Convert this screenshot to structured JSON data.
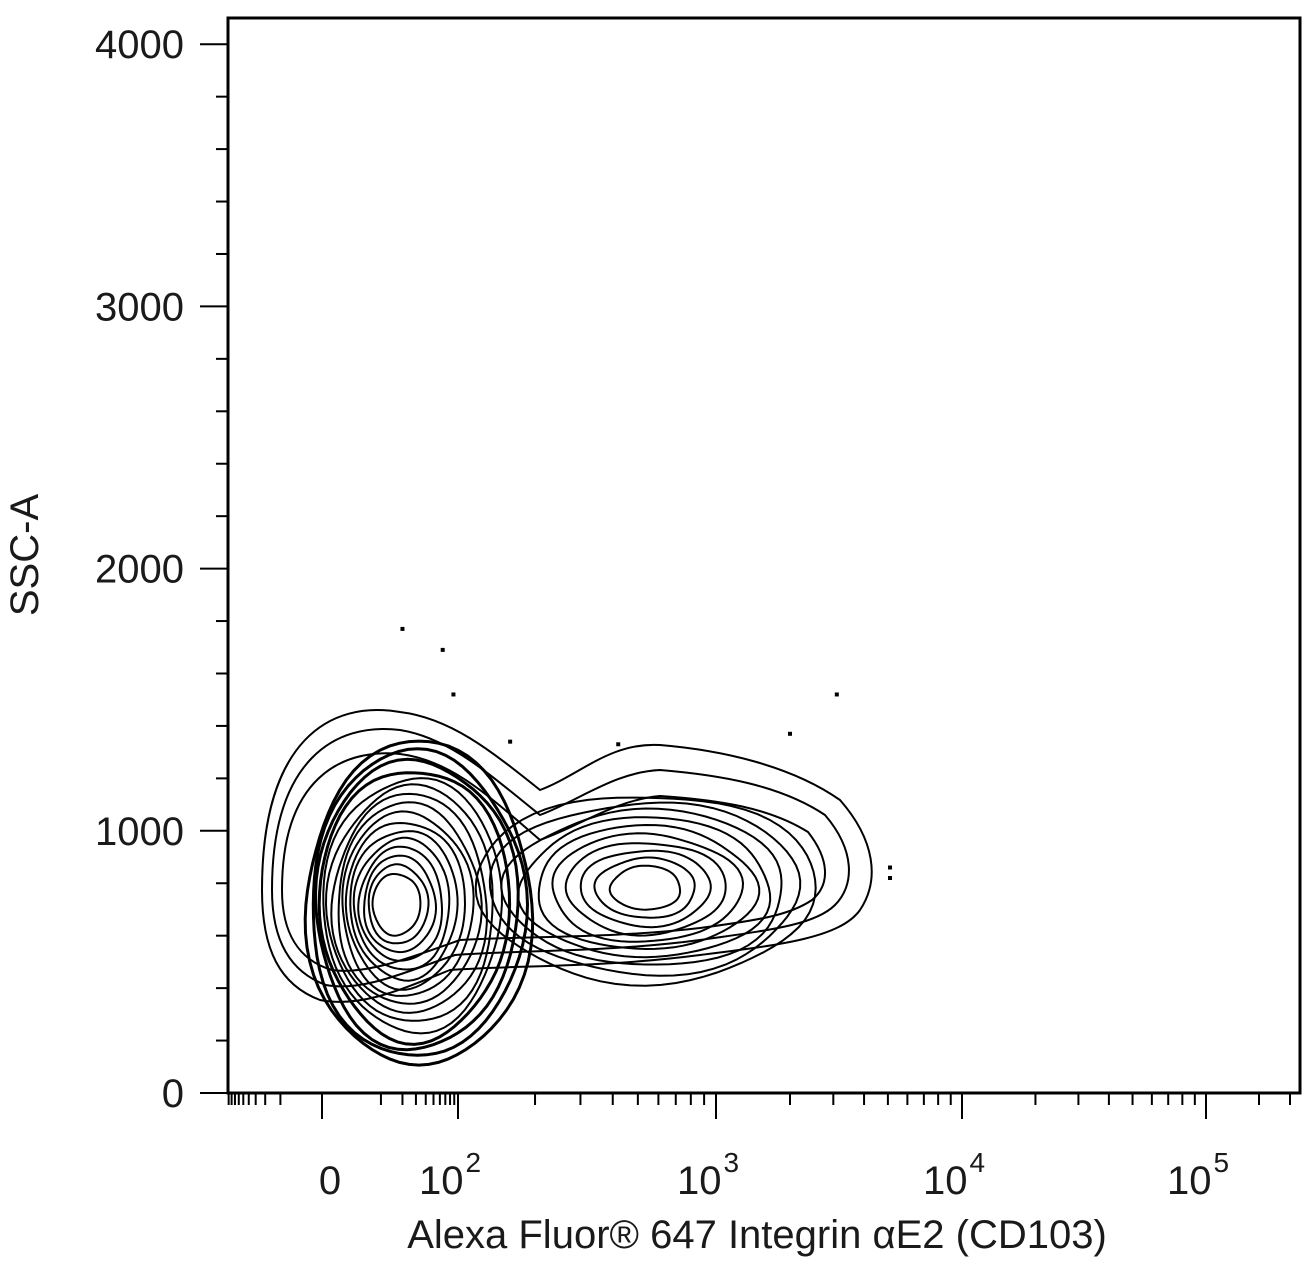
{
  "chart_data": {
    "type": "contour",
    "xlabel": "Alexa Fluor® 647 Integrin αE2 (CD103)",
    "ylabel": "SSC-A",
    "x_scale": "biexponential",
    "y_scale": "linear",
    "ylim": [
      0,
      4100
    ],
    "y_ticks": [
      {
        "value": 0,
        "label": "0"
      },
      {
        "value": 1000,
        "label": "1000"
      },
      {
        "value": 2000,
        "label": "2000"
      },
      {
        "value": 3000,
        "label": "3000"
      },
      {
        "value": 4000,
        "label": "4000"
      }
    ],
    "x_ticks": [
      {
        "value": 0,
        "label": "0",
        "base": "",
        "exp": ""
      },
      {
        "value": 100,
        "label": "",
        "base": "10",
        "exp": "2"
      },
      {
        "value": 1000,
        "label": "",
        "base": "10",
        "exp": "3"
      },
      {
        "value": 10000,
        "label": "",
        "base": "10",
        "exp": "4"
      },
      {
        "value": 100000,
        "label": "",
        "base": "10",
        "exp": "5"
      }
    ],
    "populations": [
      {
        "name": "",
        "x_center": 10,
        "y_center": 750
      },
      {
        "name": "",
        "x_center": 700,
        "y_center": 820
      }
    ],
    "outlier_events": [
      {
        "x": 20,
        "y": 1770
      },
      {
        "x": 65,
        "y": 1690
      },
      {
        "x": 88,
        "y": 1520
      },
      {
        "x": 160,
        "y": 1340
      },
      {
        "x": 420,
        "y": 1330
      },
      {
        "x": 2000,
        "y": 1370
      },
      {
        "x": 3100,
        "y": 1520
      },
      {
        "x": 5100,
        "y": 860
      },
      {
        "x": 5100,
        "y": 820
      }
    ],
    "grid": false,
    "legend": "none"
  }
}
